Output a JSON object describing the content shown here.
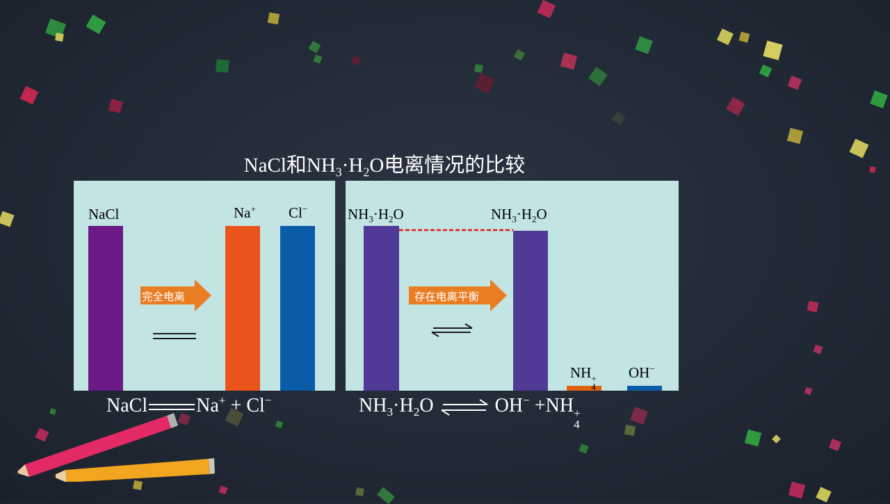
{
  "title": {
    "part1": "NaCl和NH",
    "sub1": "3",
    "part2": "·H",
    "sub2": "2",
    "part3": "O电离情况的比较"
  },
  "left_panel": {
    "label_nacl": "NaCl",
    "label_na": "Na",
    "label_na_charge": "+",
    "label_cl": "Cl",
    "label_cl_charge": "−",
    "arrow_text": "完全电离"
  },
  "right_panel": {
    "nh3": "NH",
    "nh3_sub": "3",
    "dot_h": "·H",
    "h2o_sub": "2",
    "o": "O",
    "nh4": "NH",
    "nh4_sub": "4",
    "nh4_charge": "+",
    "oh": "OH",
    "oh_charge": "−",
    "arrow_text": "存在电离平衡"
  },
  "equations": {
    "left": {
      "reactant": "NaCl",
      "na": "Na",
      "na_charge": "+",
      "plus": "+",
      "cl": "Cl",
      "cl_charge": "−"
    },
    "right": {
      "nh": "NH",
      "sub3": "3",
      "dot_h": "·H",
      "sub2": "2",
      "o": "O",
      "oh": "OH",
      "oh_charge": "−",
      "plus": "+",
      "nh4": "NH",
      "nh4_sub": "4",
      "nh4_charge": "+"
    }
  },
  "colors": {
    "background": "#222a37",
    "panel": "#c2e4e3",
    "nacl_bar": "#6b1a88",
    "na_bar": "#e85419",
    "cl_bar": "#0a5ca8",
    "nh3_bar": "#513a96",
    "nh4_bar": "#e0620f",
    "oh_bar": "#0a5ca8",
    "arrow": "#ea7d22",
    "dashed_line": "#e01717"
  }
}
